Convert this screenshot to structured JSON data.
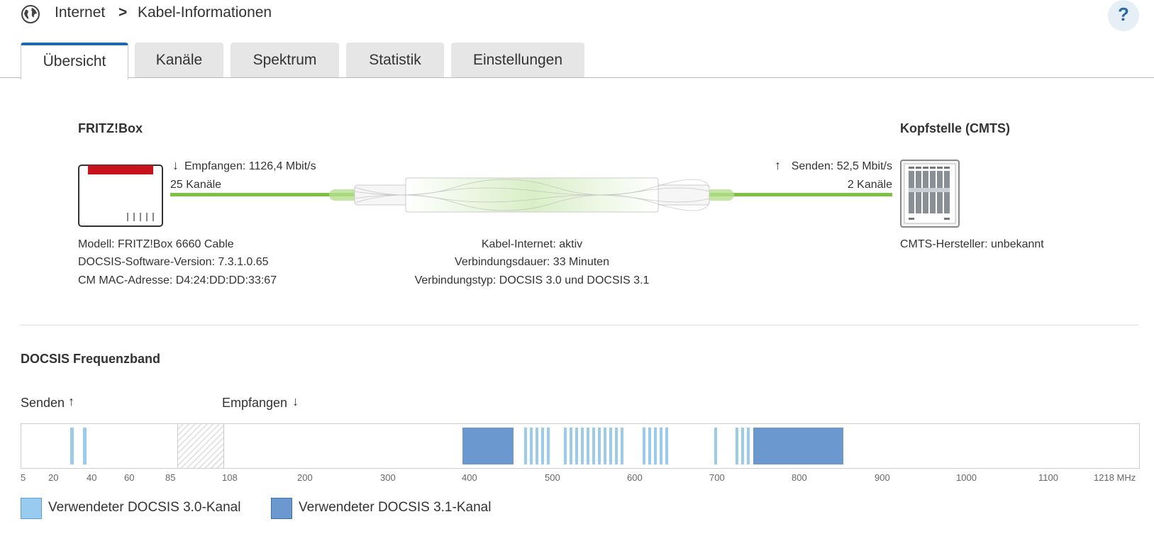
{
  "breadcrumb": {
    "section": "Internet",
    "page": "Kabel-Informationen",
    "separator": ">"
  },
  "help_label": "?",
  "tabs": [
    {
      "label": "Übersicht",
      "active": true
    },
    {
      "label": "Kanäle",
      "active": false
    },
    {
      "label": "Spektrum",
      "active": false
    },
    {
      "label": "Statistik",
      "active": false
    },
    {
      "label": "Einstellungen",
      "active": false
    }
  ],
  "fritzbox": {
    "title": "FRITZ!Box",
    "receive": "Empfangen: 1126,4 Mbit/s",
    "receive_channels": "25 Kanäle",
    "model": "Modell: FRITZ!Box 6660 Cable",
    "docsis_version": "DOCSIS-Software-Version: 7.3.1.0.65",
    "mac": "CM MAC-Adresse: D4:24:DD:DD:33:67"
  },
  "connection": {
    "status": "Kabel-Internet: aktiv",
    "duration": "Verbindungsdauer: 33 Minuten",
    "type": "Verbindungstyp: DOCSIS 3.0 und DOCSIS 3.1"
  },
  "cmts": {
    "title": "Kopfstelle (CMTS)",
    "send": "Senden: 52,5 Mbit/s",
    "send_channels": "2 Kanäle",
    "manufacturer": "CMTS-Hersteller: unbekannt"
  },
  "frequency": {
    "title": "DOCSIS Frequenzband",
    "send_label": "Senden",
    "receive_label": "Empfangen",
    "ticks": [
      "5",
      "20",
      "40",
      "60",
      "85",
      "108",
      "200",
      "300",
      "400",
      "500",
      "600",
      "700",
      "800",
      "900",
      "1000",
      "1100",
      "1218 MHz"
    ]
  },
  "legend": {
    "d30": "Verwendeter DOCSIS 3.0-Kanal",
    "d31": "Verwendeter DOCSIS 3.1-Kanal"
  },
  "colors": {
    "accent": "#2068b0",
    "line_green": "#7cc142",
    "d30": "#99caf0",
    "d31": "#6b98cf",
    "router_red": "#c8131d"
  },
  "icons": [
    "globe-icon",
    "chevron-right-icon",
    "help-icon",
    "arrow-down-icon",
    "arrow-up-icon",
    "router-icon",
    "cmts-icon"
  ]
}
